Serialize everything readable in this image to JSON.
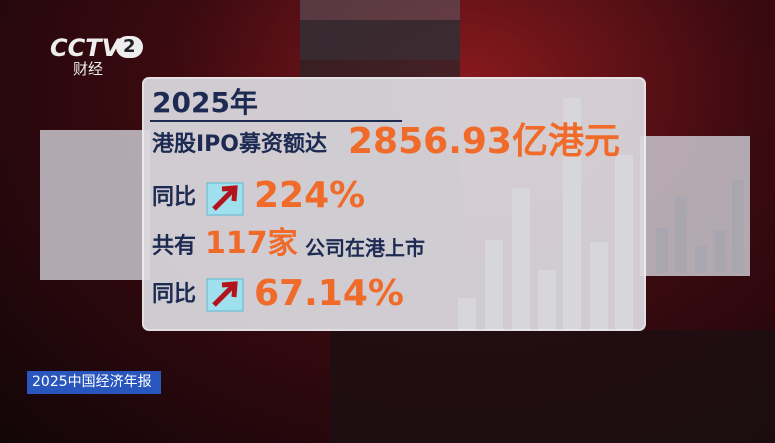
{
  "logo": {
    "channel": "CCTV",
    "number": "2",
    "subtitle": "财经"
  },
  "panel": {
    "year": "2025年",
    "ipo_label": "港股IPO募资额达",
    "ipo_amount": "2856.93亿港元",
    "ipo_yoy_label": "同比",
    "ipo_yoy": "224%",
    "listing_prefix": "共有",
    "listing_count": "117家",
    "listing_suffix": "公司在港上市",
    "listing_yoy_label": "同比",
    "listing_yoy": "67.14%"
  },
  "program": "2025中国经济年报"
}
